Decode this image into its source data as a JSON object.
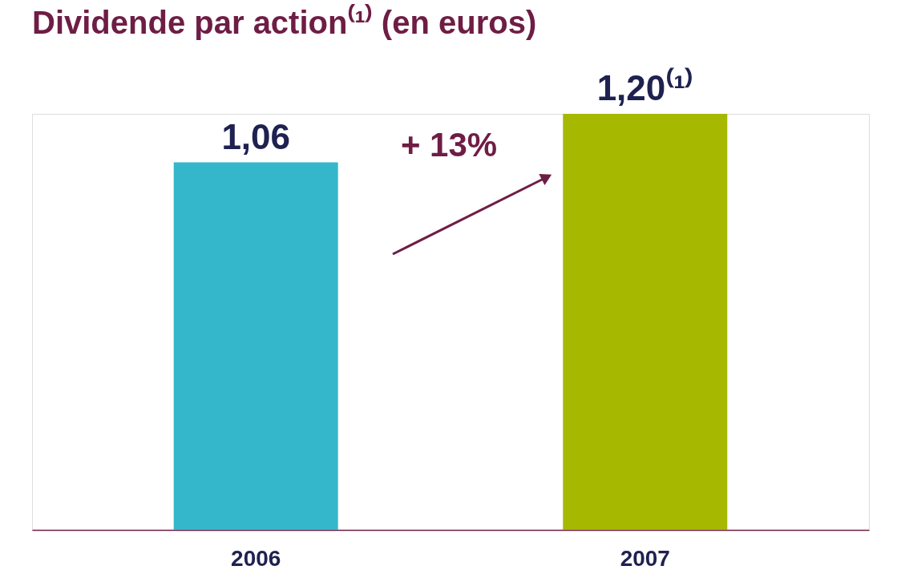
{
  "chart_data": {
    "type": "bar",
    "title": "Dividende par action⁽¹⁾ (en euros)",
    "categories": [
      "2006",
      "2007"
    ],
    "values": [
      1.06,
      1.2
    ],
    "colors": [
      "#35b7cb",
      "#a7b800"
    ],
    "value_labels": [
      "1,06",
      "1,20⁽¹⁾"
    ],
    "annotations": [
      "+ 13%"
    ],
    "grid": false,
    "legend": false
  }
}
